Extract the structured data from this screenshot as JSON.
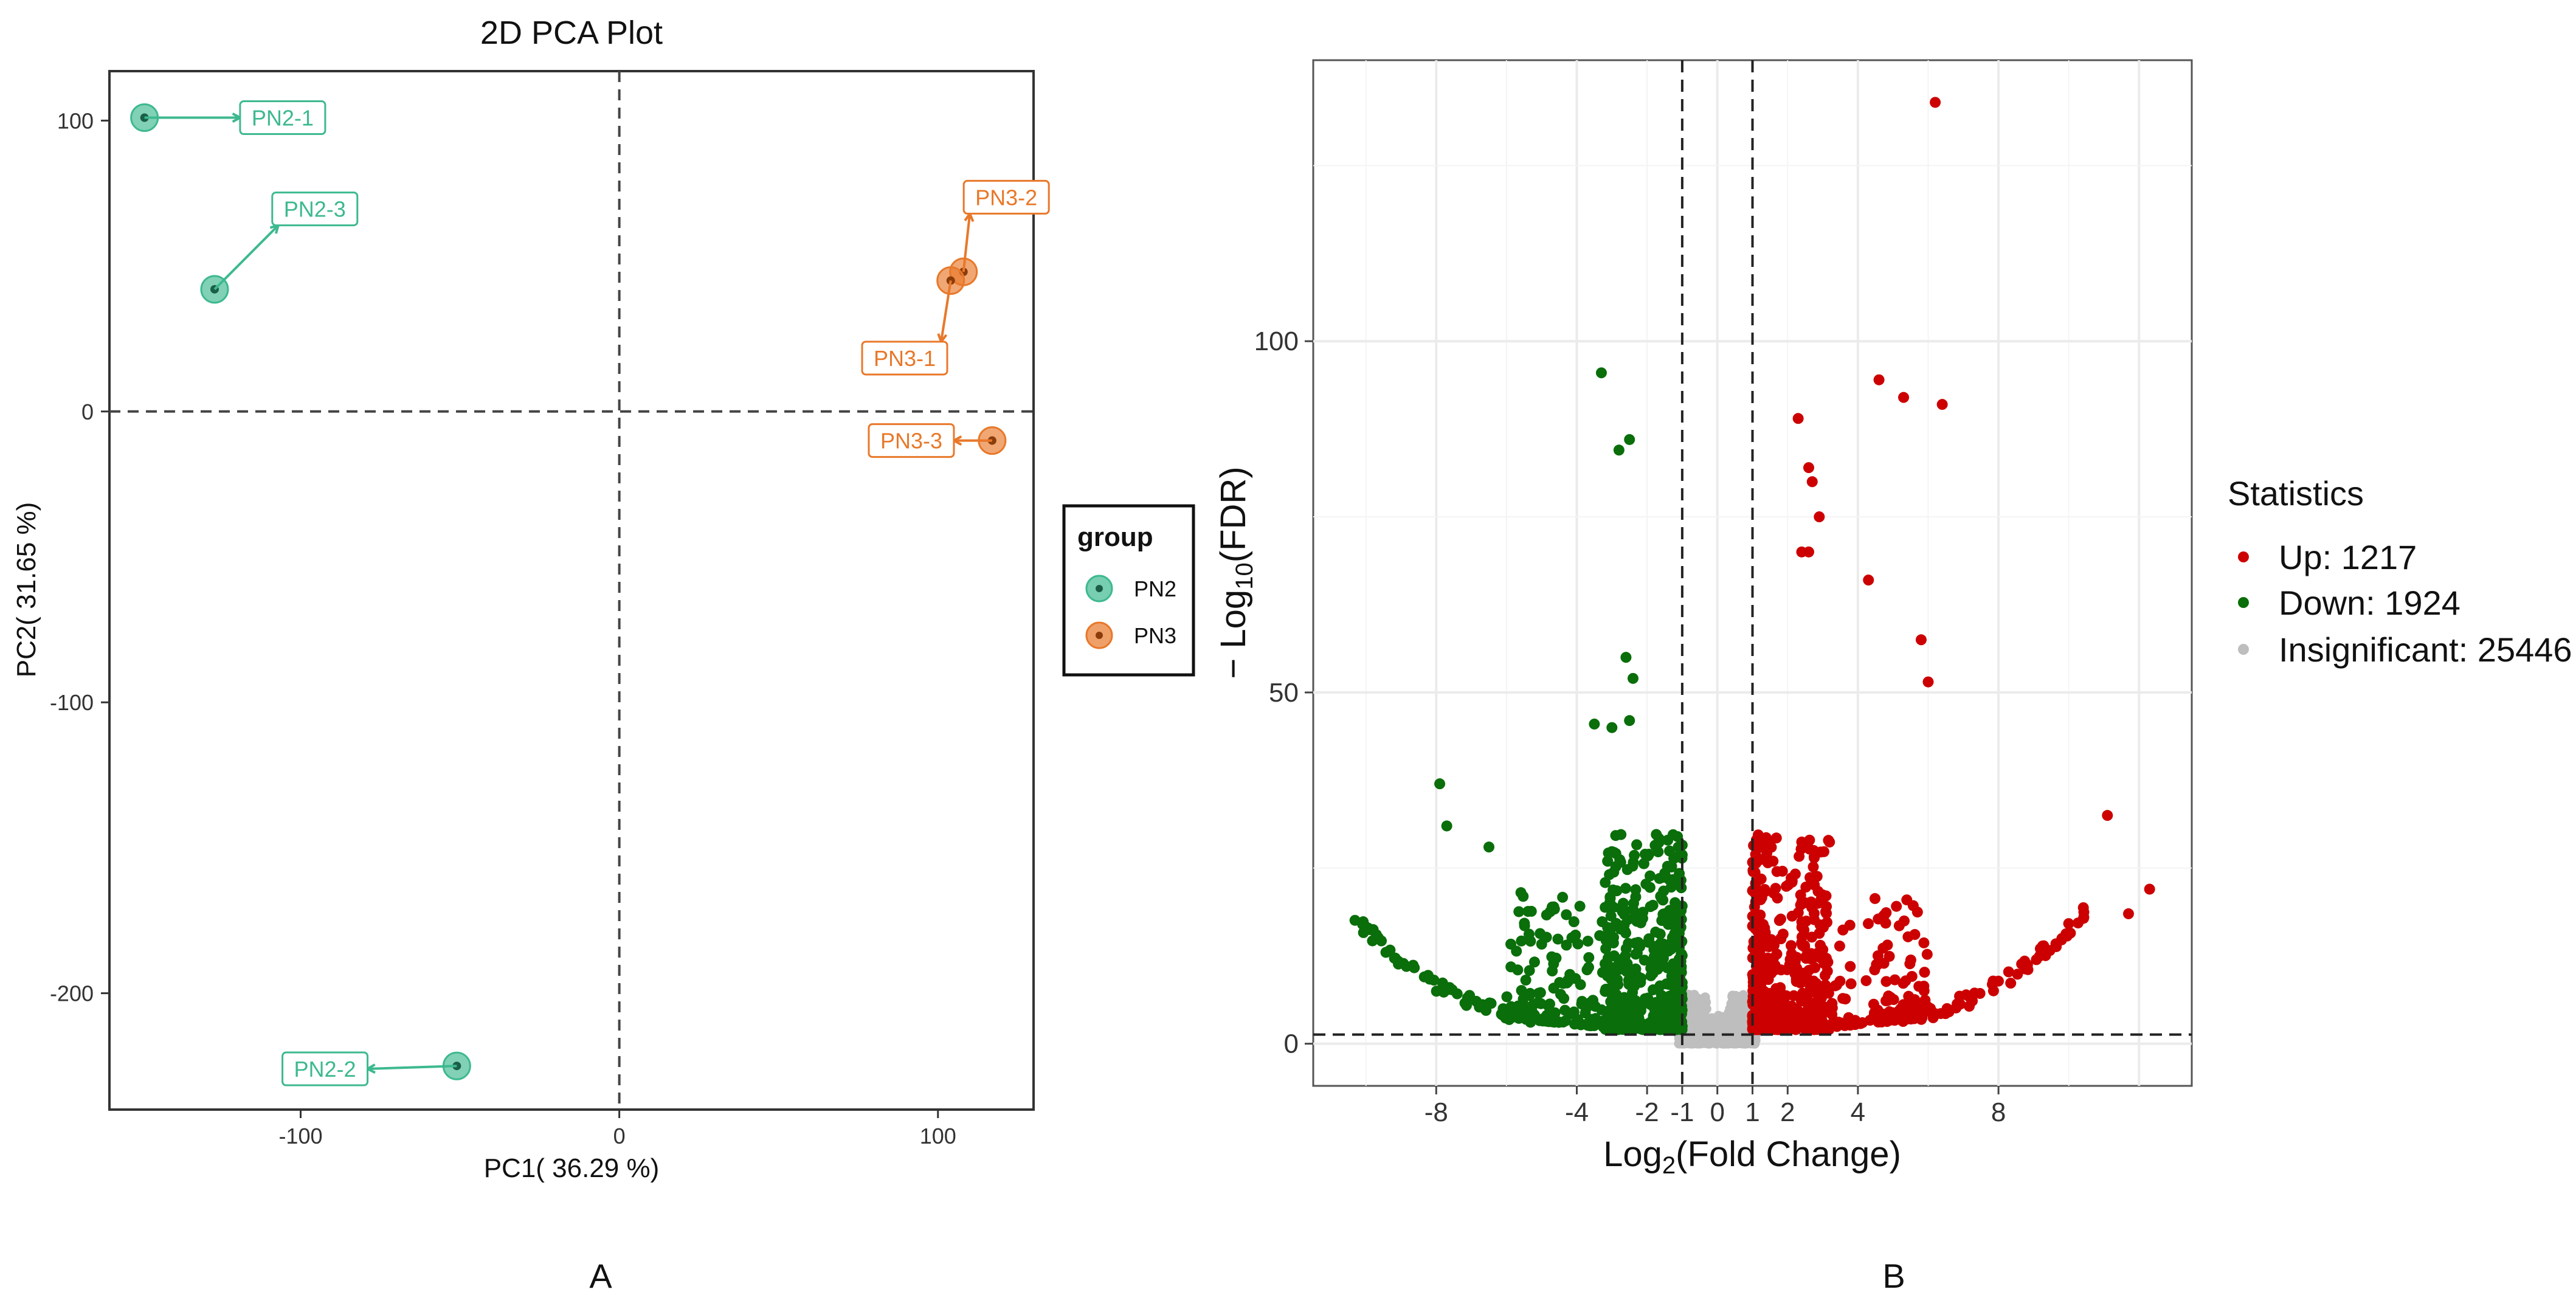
{
  "chart_data": [
    {
      "type": "scatter",
      "title": "2D PCA Plot",
      "xlabel": "PC1( 36.29 %)",
      "ylabel": "PC2( 31.65 %)",
      "xlim": [
        -160,
        130
      ],
      "ylim": [
        -240,
        117
      ],
      "xticks": [
        -100,
        0,
        100
      ],
      "yticks": [
        100,
        0,
        -100,
        -200
      ],
      "reference_lines": {
        "x": 0,
        "y": 0
      },
      "legend": {
        "title": "group",
        "entries": [
          "PN2",
          "PN3"
        ],
        "placement": "right"
      },
      "colors": {
        "PN2": "#3db98f",
        "PN3": "#e8782a"
      },
      "points": [
        {
          "label": "PN2-1",
          "group": "PN2",
          "x": -149,
          "y": 101
        },
        {
          "label": "PN2-3",
          "group": "PN2",
          "x": -127,
          "y": 42
        },
        {
          "label": "PN2-2",
          "group": "PN2",
          "x": -51,
          "y": -225
        },
        {
          "label": "PN3-2",
          "group": "PN3",
          "x": 108,
          "y": 48
        },
        {
          "label": "PN3-1",
          "group": "PN3",
          "x": 104,
          "y": 45
        },
        {
          "label": "PN3-3",
          "group": "PN3",
          "x": 117,
          "y": -10
        }
      ],
      "panel_label": "A"
    },
    {
      "type": "scatter",
      "subtype": "volcano",
      "xlabel": "Log2(Fold Change)",
      "ylabel": "− Log10(FDR)",
      "xlim": [
        -11.5,
        13.5
      ],
      "ylim": [
        -6,
        140
      ],
      "xticks": [
        -8,
        -4,
        -2,
        -1,
        0,
        1,
        2,
        4,
        8
      ],
      "yticks": [
        0,
        50,
        100
      ],
      "thresholds": {
        "fc": [
          -1,
          1
        ],
        "fdr_line": 1.3
      },
      "legend": {
        "title": "Statistics",
        "placement": "right",
        "entries": [
          {
            "label": "Up: 1217",
            "color": "#cc0000"
          },
          {
            "label": "Down: 1924",
            "color": "#0a6e0a"
          },
          {
            "label": "Insignificant: 25446",
            "color": "#bebebe"
          }
        ]
      },
      "highlight_points": [
        [
          6.2,
          134
        ],
        [
          4.6,
          94.5
        ],
        [
          5.3,
          92
        ],
        [
          6.4,
          91
        ],
        [
          -3.3,
          95.5
        ],
        [
          -2.5,
          86
        ],
        [
          -2.8,
          84.5
        ],
        [
          2.3,
          89
        ],
        [
          2.6,
          82
        ],
        [
          2.7,
          80
        ],
        [
          2.9,
          75
        ],
        [
          2.6,
          70
        ],
        [
          2.4,
          70
        ],
        [
          4.3,
          66
        ],
        [
          5.8,
          57.5
        ],
        [
          6.0,
          51.5
        ],
        [
          -3.5,
          45.5
        ],
        [
          -2.6,
          55
        ],
        [
          -2.4,
          52
        ],
        [
          -3.0,
          45
        ],
        [
          -2.5,
          46
        ],
        [
          -7.9,
          37
        ],
        [
          -7.7,
          31
        ],
        [
          -6.5,
          28
        ],
        [
          11.1,
          32.5
        ],
        [
          12.3,
          22
        ],
        [
          11.7,
          18.5
        ]
      ],
      "point_counts": {
        "up": 1217,
        "down": 1924,
        "insignificant": 25446
      },
      "panel_label": "B"
    }
  ]
}
